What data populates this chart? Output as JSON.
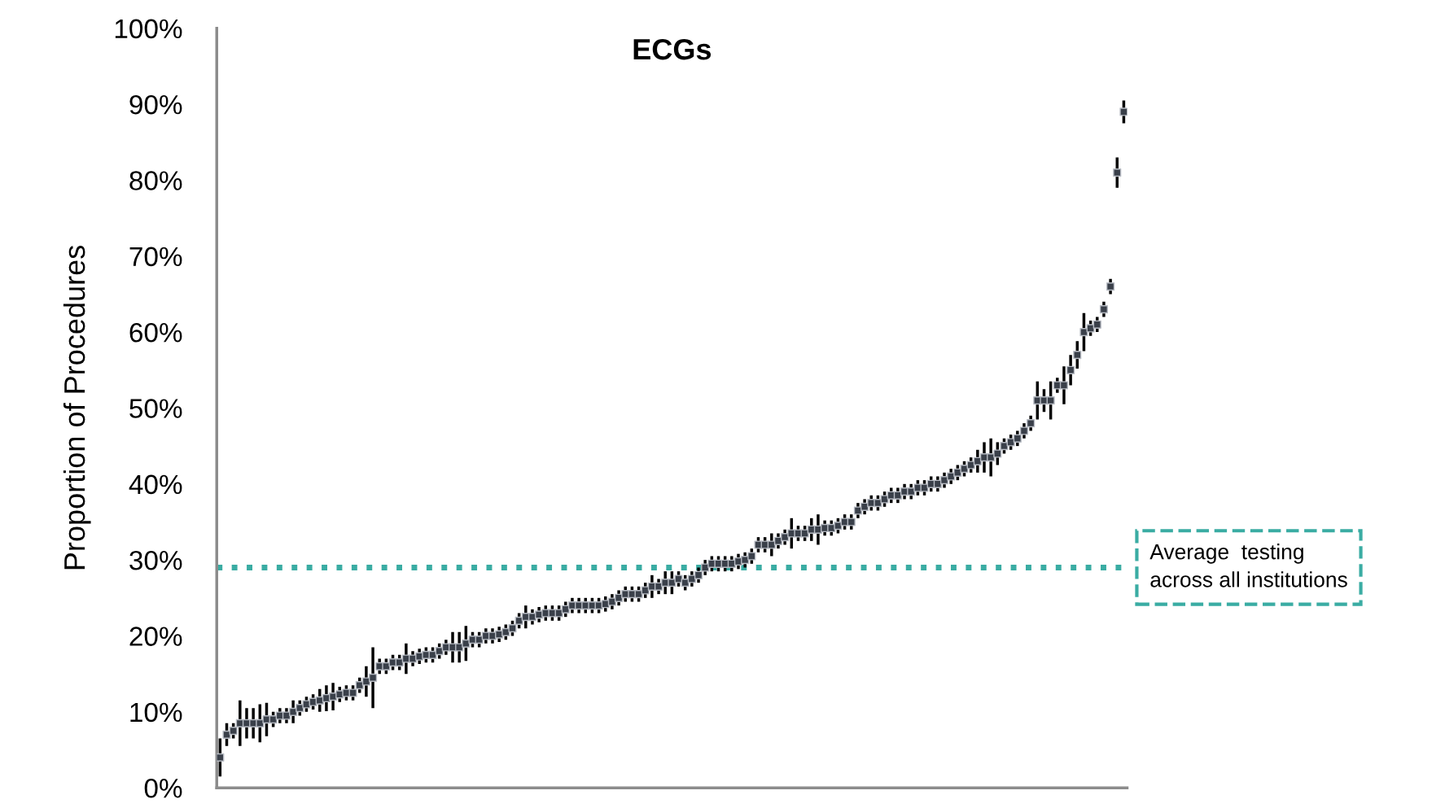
{
  "chart_data": {
    "type": "scatter",
    "title": "ECGs",
    "ylabel": "Proportion of Procedures",
    "tick_labels": "y",
    "marker": "square",
    "grid": false,
    "ylim": [
      0,
      100
    ],
    "yticks": [
      {
        "value": 0,
        "label": "0%"
      },
      {
        "value": 10,
        "label": "10%"
      },
      {
        "value": 20,
        "label": "20%"
      },
      {
        "value": 30,
        "label": "30%"
      },
      {
        "value": 40,
        "label": "40%"
      },
      {
        "value": 50,
        "label": "50%"
      },
      {
        "value": 60,
        "label": "60%"
      },
      {
        "value": 70,
        "label": "70%"
      },
      {
        "value": 80,
        "label": "80%"
      },
      {
        "value": 90,
        "label": "90%"
      },
      {
        "value": 100,
        "label": "100%"
      }
    ],
    "ref_lines": [
      {
        "axis": "y",
        "value": 29,
        "label": "Average  testing\nacross all institutions",
        "color": "#3aaca3",
        "line_style": "dotted"
      }
    ],
    "categories": [
      null,
      null,
      null,
      null,
      null,
      null,
      null,
      null,
      null,
      null,
      null,
      null,
      null,
      null,
      null,
      null,
      null,
      null,
      null,
      null,
      null,
      null,
      null,
      null,
      null,
      null,
      null,
      null,
      null,
      null,
      null,
      null,
      null,
      null,
      null,
      null,
      null,
      null,
      null,
      null,
      null,
      null,
      null,
      null,
      null,
      null,
      null,
      null,
      null,
      null,
      null,
      null,
      null,
      null,
      null,
      null,
      null,
      null,
      null,
      null,
      null,
      null,
      null,
      null,
      null,
      null,
      null,
      null,
      null,
      null,
      null,
      null,
      null,
      null,
      null,
      null,
      null,
      null,
      null,
      null,
      null,
      null,
      null,
      null,
      null,
      null,
      null,
      null,
      null,
      null,
      null,
      null,
      null,
      null,
      null,
      null,
      null,
      null,
      null,
      null,
      null,
      null,
      null,
      null,
      null,
      null,
      null,
      null,
      null,
      null,
      null,
      null,
      null,
      null,
      null,
      null,
      null,
      null,
      null,
      null,
      null,
      null,
      null,
      null,
      null,
      null,
      null,
      null,
      null,
      null,
      null,
      null,
      null,
      null,
      null,
      null,
      null
    ],
    "series": [
      {
        "color": "#3a404a",
        "values": [
          4,
          7,
          7.5,
          8.5,
          8.5,
          8.5,
          8.5,
          9,
          9,
          9.5,
          9.5,
          10,
          10.5,
          11,
          11.3,
          11.5,
          11.8,
          12,
          12.3,
          12.5,
          12.5,
          13.5,
          14,
          14.5,
          16,
          16,
          16.5,
          16.5,
          17,
          17,
          17.3,
          17.5,
          17.5,
          18,
          18.5,
          18.5,
          18.5,
          19,
          19.5,
          19.5,
          20,
          20,
          20.2,
          20.5,
          21,
          22,
          22.5,
          22.5,
          22.8,
          23,
          23,
          23,
          23.5,
          24,
          24,
          24,
          24,
          24,
          24.2,
          24.5,
          25,
          25.5,
          25.5,
          25.5,
          26,
          26.5,
          26.5,
          27,
          27,
          27.5,
          27,
          27.5,
          28,
          29,
          29.5,
          29.5,
          29.5,
          29.5,
          29.8,
          30,
          30.5,
          32,
          32,
          32,
          32.5,
          33,
          33.5,
          33.5,
          33.5,
          34,
          34,
          34.2,
          34.2,
          34.5,
          35,
          35,
          36.5,
          37,
          37.5,
          37.5,
          38,
          38.5,
          38.5,
          39,
          39,
          39.5,
          39.5,
          40,
          40,
          40.5,
          41,
          41.5,
          42,
          42.5,
          43,
          43.5,
          43.5,
          44,
          45,
          45.5,
          46,
          47,
          48,
          51,
          51,
          51,
          53,
          53,
          55,
          57,
          60,
          60.5,
          61,
          63,
          66,
          81,
          89
        ],
        "errors": [
          2.5,
          1.5,
          1,
          3,
          2,
          2,
          2.5,
          2.2,
          1,
          1,
          1,
          1.5,
          1,
          1,
          1,
          1.5,
          1.7,
          1.8,
          1,
          1,
          1,
          1,
          2,
          4,
          1,
          1,
          1,
          1,
          2,
          1,
          1,
          1,
          1,
          1,
          1,
          2,
          2,
          2.3,
          1,
          1,
          1,
          1,
          1,
          1,
          1,
          1,
          1.5,
          1,
          1,
          1,
          1,
          1,
          1,
          1,
          1,
          1,
          1,
          1,
          1,
          1,
          1,
          1,
          1,
          1,
          1,
          1.5,
          1,
          1.5,
          1.5,
          1,
          1,
          1,
          1,
          1,
          1,
          1,
          1,
          1,
          1,
          1,
          1,
          1,
          1,
          1.5,
          1,
          1,
          2,
          1,
          1,
          1.5,
          2,
          1,
          1,
          1,
          1,
          1,
          1,
          1,
          1,
          1,
          1,
          1,
          1,
          1,
          1,
          1,
          1,
          1,
          1,
          1,
          1,
          1,
          1,
          1,
          1.5,
          2,
          2.5,
          1.5,
          1,
          1,
          1,
          1,
          1,
          2.5,
          1.5,
          2.5,
          1,
          2.5,
          2,
          1.8,
          2.5,
          1,
          1,
          1,
          1,
          2,
          1.5
        ]
      }
    ]
  }
}
